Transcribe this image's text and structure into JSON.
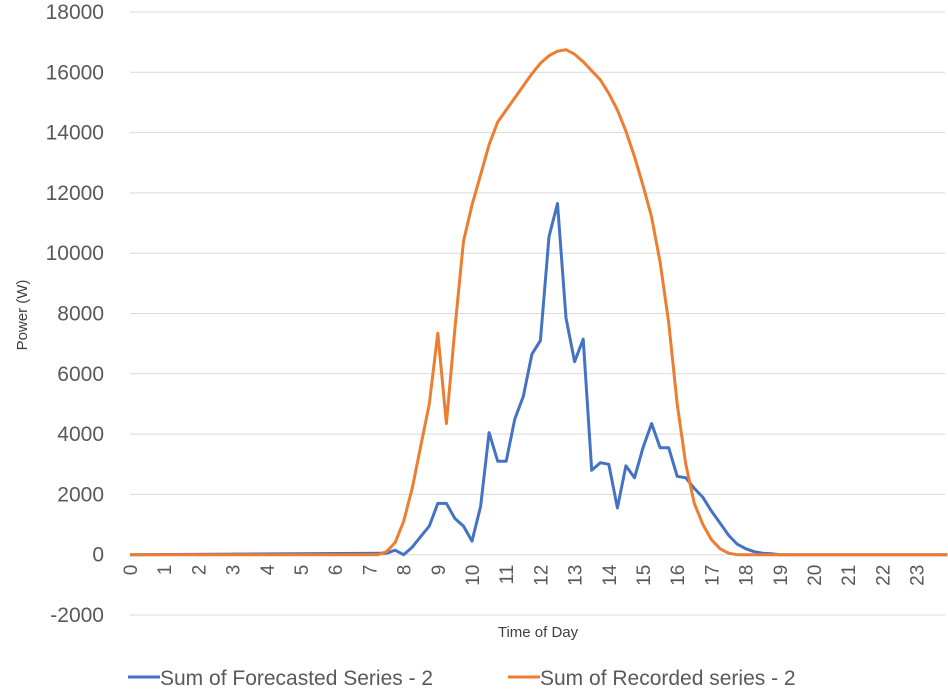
{
  "chart_data": {
    "type": "line",
    "title": "",
    "xlabel": "Time of Day",
    "ylabel": "Power (W)",
    "ylim": [
      -2000,
      18000
    ],
    "yticks": [
      "18000",
      "16000",
      "14000",
      "12000",
      "10000",
      "8000",
      "6000",
      "4000",
      "2000",
      "0",
      "-2000"
    ],
    "xticks": [
      "0",
      "1",
      "2",
      "3",
      "4",
      "5",
      "6",
      "7",
      "8",
      "9",
      "10",
      "11",
      "12",
      "13",
      "14",
      "15",
      "16",
      "17",
      "18",
      "19",
      "20",
      "21",
      "22",
      "23"
    ],
    "grid": "horizontal",
    "legend": "bottom",
    "series": [
      {
        "name": "Sum of Forecasted Series - 2",
        "color": "#4472c4",
        "x": [
          0,
          7.5,
          7.75,
          8,
          8.25,
          8.5,
          8.75,
          9,
          9.25,
          9.5,
          9.75,
          10,
          10.25,
          10.5,
          10.75,
          11,
          11.25,
          11.5,
          11.75,
          12,
          12.25,
          12.5,
          12.75,
          13,
          13.25,
          13.5,
          13.75,
          14,
          14.25,
          14.5,
          14.75,
          15,
          15.25,
          15.5,
          15.75,
          16,
          16.25,
          16.5,
          16.75,
          17,
          17.25,
          17.5,
          17.75,
          18,
          18.25,
          18.5,
          18.75,
          19,
          19.5,
          23.9
        ],
        "values": [
          0,
          50,
          150,
          0,
          250,
          600,
          950,
          1700,
          1700,
          1200,
          950,
          450,
          1600,
          4050,
          3100,
          3100,
          4500,
          5250,
          6650,
          7100,
          10550,
          11650,
          7850,
          6400,
          7150,
          2800,
          3050,
          3000,
          1550,
          2950,
          2550,
          3550,
          4350,
          3550,
          3550,
          2600,
          2550,
          2200,
          1900,
          1450,
          1050,
          650,
          350,
          200,
          100,
          50,
          30,
          0,
          0,
          0
        ]
      },
      {
        "name": "Sum of Recorded series - 2",
        "color": "#ed7d31",
        "x": [
          0,
          7.25,
          7.5,
          7.75,
          8,
          8.25,
          8.5,
          8.75,
          9,
          9.25,
          9.5,
          9.75,
          10,
          10.25,
          10.5,
          10.75,
          11,
          11.25,
          11.5,
          11.75,
          12,
          12.25,
          12.5,
          12.75,
          13,
          13.25,
          13.5,
          13.75,
          14,
          14.25,
          14.5,
          14.75,
          15,
          15.25,
          15.5,
          15.75,
          16,
          16.25,
          16.5,
          16.75,
          17,
          17.25,
          17.5,
          17.75,
          18,
          23.9
        ],
        "values": [
          0,
          0,
          100,
          400,
          1100,
          2200,
          3600,
          5000,
          7350,
          4350,
          7500,
          10400,
          11600,
          12600,
          13600,
          14350,
          14750,
          15150,
          15550,
          15950,
          16300,
          16550,
          16700,
          16750,
          16600,
          16350,
          16050,
          15750,
          15300,
          14750,
          14050,
          13200,
          12250,
          11200,
          9700,
          7700,
          5000,
          3000,
          1700,
          1000,
          500,
          200,
          50,
          0,
          0,
          0
        ]
      }
    ]
  }
}
